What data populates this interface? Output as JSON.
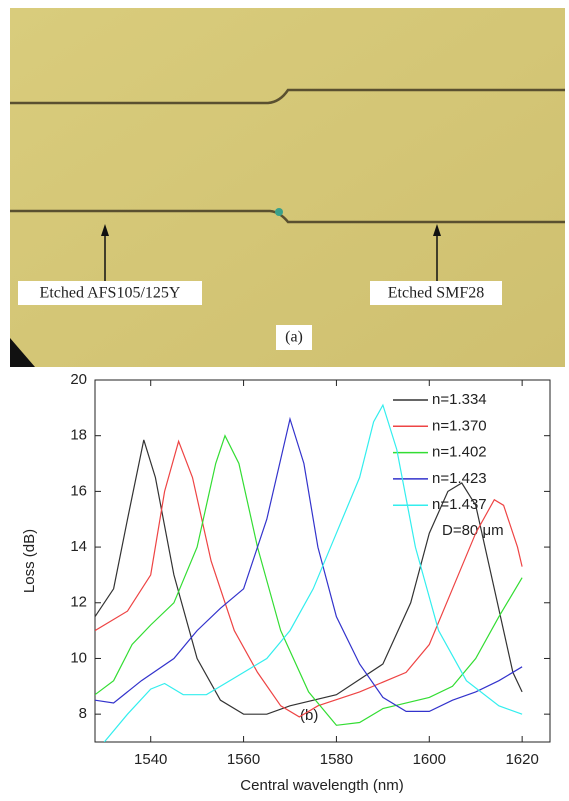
{
  "photo": {
    "left_label": "Etched AFS105/125Y",
    "right_label": "Etched SMF28",
    "caption": "(a)"
  },
  "chart_data": {
    "type": "line",
    "xlabel": "Central wavelength (nm)",
    "ylabel": "Loss (dB)",
    "xlim": [
      1528,
      1626
    ],
    "ylim": [
      7,
      20
    ],
    "xticks": [
      1540,
      1560,
      1580,
      1600,
      1620
    ],
    "yticks": [
      8,
      10,
      12,
      14,
      16,
      18,
      20
    ],
    "annotations": [
      "D=80 μm",
      "(b)"
    ],
    "series": [
      {
        "name": "n=1.334",
        "color": "#333333",
        "x": [
          1528,
          1532,
          1535,
          1538.5,
          1541,
          1545,
          1550,
          1555,
          1560,
          1565,
          1570,
          1580,
          1590,
          1596,
          1600,
          1604,
          1607,
          1610,
          1614,
          1618,
          1620
        ],
        "values": [
          11.5,
          12.5,
          15,
          17.85,
          16.5,
          13,
          10,
          8.5,
          8,
          8,
          8.3,
          8.7,
          9.8,
          12,
          14.5,
          16,
          16.3,
          15.5,
          12.5,
          9.5,
          8.8
        ]
      },
      {
        "name": "n=1.370",
        "color": "#ee4444",
        "x": [
          1528,
          1535,
          1540,
          1543,
          1546,
          1549,
          1553,
          1558,
          1563,
          1568,
          1572,
          1576,
          1585,
          1595,
          1600,
          1605,
          1610,
          1614,
          1616,
          1619,
          1620
        ],
        "values": [
          11,
          11.7,
          13,
          16,
          17.8,
          16.5,
          13.5,
          11,
          9.5,
          8.3,
          7.9,
          8.3,
          8.8,
          9.5,
          10.5,
          12.5,
          14.5,
          15.7,
          15.5,
          14,
          13.3
        ]
      },
      {
        "name": "n=1.402",
        "color": "#33dd33",
        "x": [
          1528,
          1532,
          1536,
          1540,
          1545,
          1550,
          1554,
          1556,
          1559,
          1563,
          1568,
          1574,
          1580,
          1585,
          1590,
          1600,
          1605,
          1610,
          1615,
          1620
        ],
        "values": [
          8.7,
          9.2,
          10.5,
          11.2,
          12,
          14,
          17,
          18,
          17,
          14,
          11,
          8.8,
          7.6,
          7.7,
          8.2,
          8.6,
          9,
          10,
          11.5,
          12.9
        ]
      },
      {
        "name": "n=1.423",
        "color": "#3333cc",
        "x": [
          1528,
          1532,
          1538,
          1545,
          1550,
          1555,
          1560,
          1565,
          1570,
          1573,
          1576,
          1580,
          1585,
          1590,
          1595,
          1600,
          1605,
          1610,
          1615,
          1620
        ],
        "values": [
          8.5,
          8.4,
          9.2,
          10,
          11,
          11.8,
          12.5,
          15,
          18.6,
          17,
          14,
          11.5,
          9.8,
          8.6,
          8.1,
          8.1,
          8.5,
          8.8,
          9.2,
          9.7
        ]
      },
      {
        "name": "n=1.437",
        "color": "#33eeee",
        "x": [
          1530,
          1535,
          1540,
          1543,
          1547,
          1552,
          1558,
          1565,
          1570,
          1575,
          1580,
          1585,
          1588,
          1590,
          1593,
          1597,
          1602,
          1608,
          1615,
          1620
        ],
        "values": [
          7,
          8,
          8.9,
          9.1,
          8.7,
          8.7,
          9.3,
          10,
          11,
          12.5,
          14.5,
          16.5,
          18.5,
          19.1,
          17.5,
          14,
          11,
          9.2,
          8.3,
          8
        ]
      }
    ]
  }
}
